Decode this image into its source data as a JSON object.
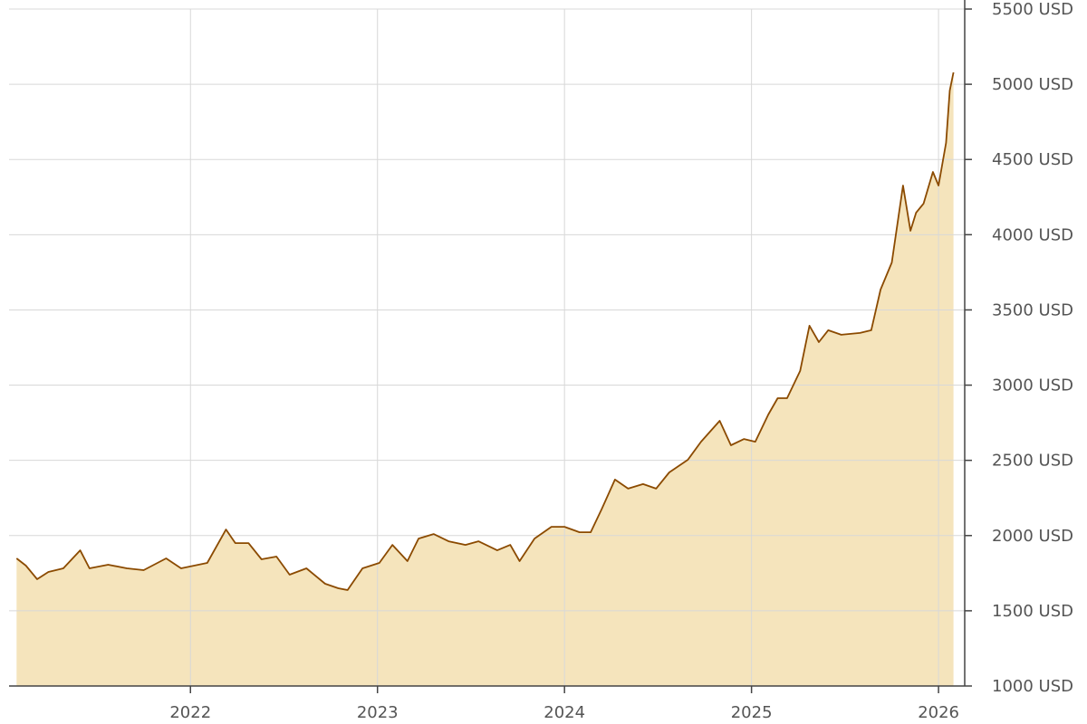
{
  "chart_data": {
    "type": "area",
    "x": [
      2021.07,
      2021.12,
      2021.18,
      2021.24,
      2021.32,
      2021.41,
      2021.46,
      2021.56,
      2021.66,
      2021.75,
      2021.87,
      2021.95,
      2022.09,
      2022.19,
      2022.24,
      2022.31,
      2022.38,
      2022.46,
      2022.53,
      2022.62,
      2022.72,
      2022.79,
      2022.84,
      2022.92,
      2023.01,
      2023.08,
      2023.16,
      2023.22,
      2023.3,
      2023.38,
      2023.47,
      2023.54,
      2023.64,
      2023.71,
      2023.76,
      2023.84,
      2023.93,
      2024.0,
      2024.08,
      2024.14,
      2024.2,
      2024.27,
      2024.34,
      2024.42,
      2024.49,
      2024.56,
      2024.66,
      2024.73,
      2024.83,
      2024.89,
      2024.96,
      2025.02,
      2025.09,
      2025.14,
      2025.19,
      2025.26,
      2025.31,
      2025.36,
      2025.41,
      2025.48,
      2025.58,
      2025.64,
      2025.69,
      2025.75,
      2025.81,
      2025.85,
      2025.88,
      2025.92,
      2025.97,
      2026.0,
      2026.04,
      2026.06,
      2026.08
    ],
    "series": [
      {
        "color": "#8b4a00",
        "fill": "#f5e4bc",
        "values": [
          1848,
          1800,
          1710,
          1758,
          1782,
          1902,
          1782,
          1806,
          1782,
          1770,
          1848,
          1782,
          1818,
          2040,
          1950,
          1950,
          1842,
          1860,
          1740,
          1782,
          1680,
          1650,
          1638,
          1782,
          1818,
          1938,
          1830,
          1980,
          2010,
          1962,
          1938,
          1962,
          1902,
          1938,
          1830,
          1980,
          2058,
          2058,
          2022,
          2022,
          2179,
          2372,
          2312,
          2342,
          2312,
          2420,
          2504,
          2624,
          2763,
          2600,
          2642,
          2624,
          2805,
          2913,
          2913,
          3094,
          3395,
          3286,
          3365,
          3335,
          3347,
          3365,
          3635,
          3815,
          4327,
          4026,
          4146,
          4207,
          4417,
          4327,
          4610,
          4958,
          5079
        ]
      }
    ],
    "xlim": [
      2021.03,
      2026.14
    ],
    "xticks": [
      2022,
      2023,
      2024,
      2025,
      2026
    ],
    "ylim": [
      1000,
      5500
    ],
    "yticks": [
      {
        "value": 1000,
        "label": "1000 USD"
      },
      {
        "value": 1500,
        "label": "1500 USD"
      },
      {
        "value": 2000,
        "label": "2000 USD"
      },
      {
        "value": 2500,
        "label": "2500 USD"
      },
      {
        "value": 3000,
        "label": "3000 USD"
      },
      {
        "value": 3500,
        "label": "3500 USD"
      },
      {
        "value": 4000,
        "label": "4000 USD"
      },
      {
        "value": 4500,
        "label": "4500 USD"
      },
      {
        "value": 5000,
        "label": "5000 USD"
      },
      {
        "value": 5500,
        "label": "5500 USD"
      }
    ],
    "grid": true
  }
}
